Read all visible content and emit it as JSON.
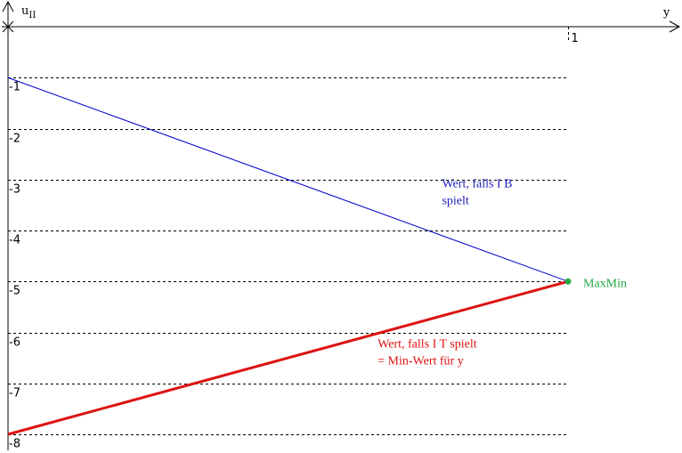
{
  "chart_data": {
    "type": "line",
    "title": "",
    "xlabel": "y",
    "ylabel_main": "u",
    "ylabel_sub": "II",
    "xlim": [
      0,
      1
    ],
    "ylim": [
      -8,
      0
    ],
    "x_ticks": [
      {
        "value": 1,
        "label": "1"
      }
    ],
    "y_ticks": [
      {
        "value": -1,
        "label": "-1"
      },
      {
        "value": -2,
        "label": "-2"
      },
      {
        "value": -3,
        "label": "-3"
      },
      {
        "value": -4,
        "label": "-4"
      },
      {
        "value": -5,
        "label": "-5"
      },
      {
        "value": -6,
        "label": "-6"
      },
      {
        "value": -7,
        "label": "-7"
      },
      {
        "value": -8,
        "label": "-8"
      }
    ],
    "grid": "horizontal dashed",
    "series": [
      {
        "key": "b",
        "x": [
          0,
          1
        ],
        "y": [
          -1,
          -5
        ],
        "color": "#0000cc",
        "width": 1
      },
      {
        "key": "t",
        "x": [
          0,
          1
        ],
        "y": [
          -8,
          -5
        ],
        "color": "#dd1111",
        "width": 3
      }
    ],
    "points": [
      {
        "x": 1,
        "y": -5,
        "label": "MaxMin",
        "color": "#22aa44"
      }
    ],
    "annotations": [
      {
        "key": "b",
        "lines": [
          "Wert, falls I B",
          "spielt"
        ],
        "color": "#2222bb",
        "at_x": 0.775,
        "at_y": -3.15
      },
      {
        "key": "t",
        "lines": [
          "Wert, falls I T spielt",
          "= Min-Wert für y"
        ],
        "color": "#dd1111",
        "at_x": 0.66,
        "at_y": -6.3
      }
    ]
  }
}
